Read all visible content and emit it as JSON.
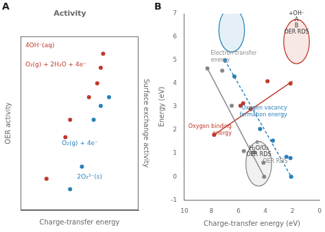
{
  "chart_data": [
    {
      "type": "scatter",
      "panel_label": "A",
      "title": "Activity",
      "xlabel": "Charge-transfer energy",
      "ylabel": "OER activity",
      "y2label": "Surface exchange activity",
      "xlim": [
        0,
        1
      ],
      "ylim": [
        0,
        1
      ],
      "tick_labels": false,
      "grid": false,
      "series": [
        {
          "color": "#c0392b",
          "x": [
            0.22,
            0.38,
            0.42,
            0.58,
            0.65,
            0.68,
            0.7
          ],
          "values": [
            0.18,
            0.42,
            0.52,
            0.65,
            0.73,
            0.82,
            0.9
          ]
        },
        {
          "color": "#2980b9",
          "x": [
            0.42,
            0.52,
            0.62,
            0.68,
            0.75
          ],
          "values": [
            0.12,
            0.25,
            0.52,
            0.6,
            0.65
          ]
        }
      ],
      "annotations": [
        {
          "text": "4OH⁻(aq)",
          "x": 0.04,
          "y": 0.97,
          "color": "#c0392b"
        },
        {
          "text": "O₂(g) + 2H₂O + 4e⁻",
          "x": 0.04,
          "y": 0.86,
          "color": "#c0392b"
        },
        {
          "text": "O₂(g) + 4e⁻",
          "x": 0.35,
          "y": 0.37,
          "color": "#2980b9"
        },
        {
          "text": "2O₂²⁻(s)",
          "x": 0.48,
          "y": 0.18,
          "color": "#2980b9"
        }
      ]
    },
    {
      "type": "scatter",
      "panel_label": "B",
      "xlabel": "Charge-transfer energy (eV)",
      "ylabel": "Energy (eV)",
      "xlim": [
        10,
        0
      ],
      "ylim": [
        -1,
        7
      ],
      "xticks": [
        10,
        8,
        6,
        4,
        2,
        0
      ],
      "yticks": [
        -1,
        0,
        1,
        2,
        3,
        4,
        5,
        6,
        7
      ],
      "grid": false,
      "series": [
        {
          "type": "line",
          "color": "#888888",
          "x": [
            8.3,
            4.1,
            4.1
          ],
          "values": [
            4.65,
            0.0,
            -0.05
          ]
        },
        {
          "type": "line",
          "line_style": "dashed",
          "color": "#2980b9",
          "x": [
            7.0,
            2.1
          ],
          "values": [
            5.0,
            0.0
          ]
        },
        {
          "type": "line",
          "color": "#c0392b",
          "x": [
            7.8,
            2.0
          ],
          "values": [
            1.8,
            4.1
          ]
        },
        {
          "color": "#888888",
          "x": [
            8.3,
            7.2,
            6.5,
            5.6,
            4.85,
            4.15,
            4.1
          ],
          "values": [
            4.65,
            4.55,
            3.05,
            1.1,
            1.05,
            0.6,
            0.0
          ]
        },
        {
          "color": "#c0392b",
          "x": [
            7.8,
            5.85,
            5.65,
            5.1,
            3.85,
            2.15
          ],
          "values": [
            1.8,
            3.05,
            3.15,
            2.9,
            4.1,
            4.0
          ]
        },
        {
          "color": "#2980b9",
          "x": [
            7.0,
            6.3,
            4.4,
            3.45,
            2.45,
            2.15,
            2.1
          ],
          "values": [
            5.0,
            4.3,
            2.05,
            1.55,
            0.85,
            0.8,
            0.0
          ]
        }
      ],
      "annotations": [
        {
          "text": "Electron transfer\nenergy",
          "x": 8.05,
          "y": 4.85,
          "color": "#888888"
        },
        {
          "text": "Oxygen binding\nenergy",
          "x": 6.5,
          "y": 2.0,
          "color": "#c0392b"
        },
        {
          "text": "Oxygen vacancy\nformation energy",
          "x": 2.4,
          "y": 2.8,
          "color": "#2980b9"
        },
        {
          "text": "OER RDS",
          "x": 4.2,
          "y": 0.5,
          "color": "#888888"
        }
      ],
      "insets": [
        {
          "x": 6.5,
          "y": 6.3,
          "r": 0.95,
          "color": "#2980b9",
          "texts": []
        },
        {
          "x": 4.5,
          "y": 0.55,
          "r": 0.95,
          "color": "#888888",
          "texts": [
            "e⁻",
            "H₂O/O₂",
            "OER RDS"
          ]
        },
        {
          "x": 1.7,
          "y": 5.8,
          "r": 0.95,
          "color": "#c0392b",
          "texts": [
            "+OH⁻",
            "A",
            "B",
            "OER RDS"
          ]
        }
      ]
    }
  ]
}
